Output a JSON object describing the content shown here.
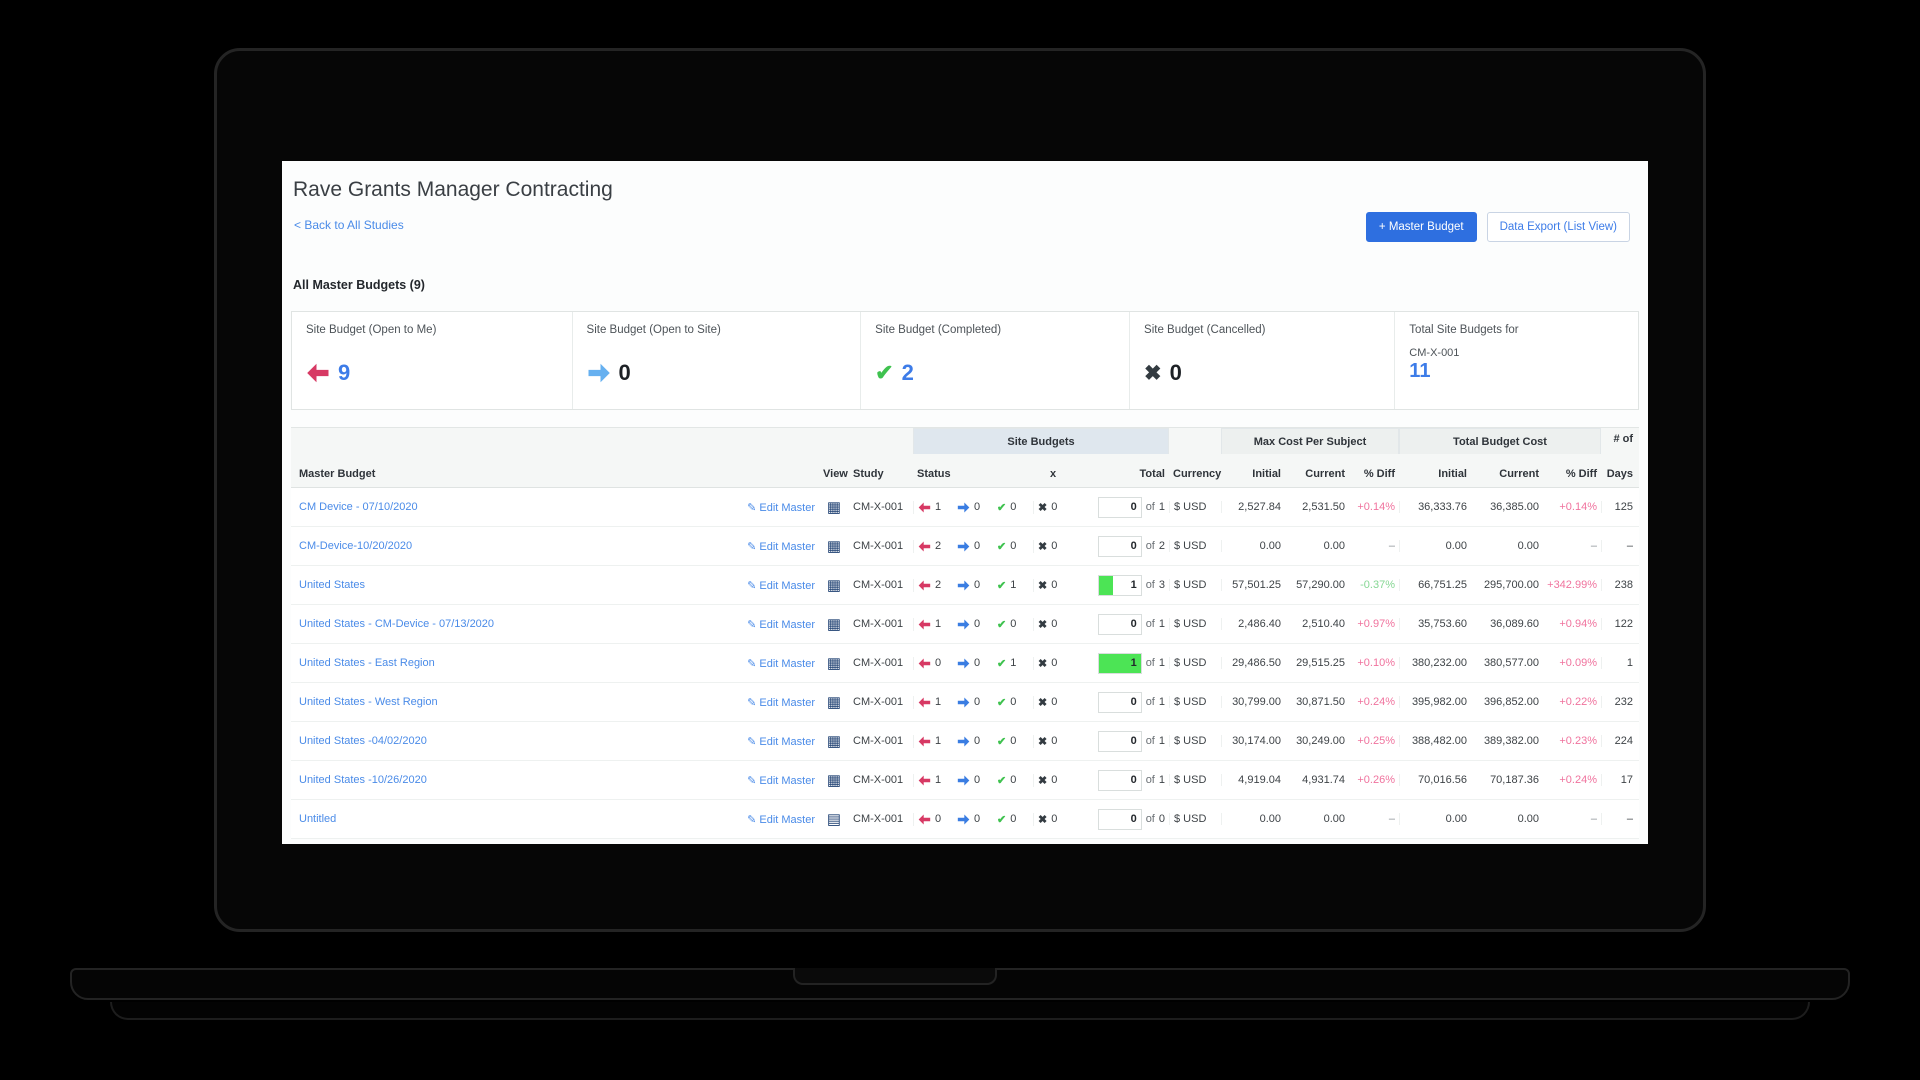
{
  "window": {
    "title": "Rave Grants Manager Contracting",
    "back_link": "< Back to All Studies"
  },
  "toolbar": {
    "master_budget_button": "+ Master Budget",
    "data_export_button": "Data Export (List View)"
  },
  "section": {
    "heading": "All Master Budgets (9)"
  },
  "summary_cards": [
    {
      "label": "Site Budget (Open to Me)",
      "icon": "left-arrow-icon",
      "value": "9",
      "value_color": "#3d7ce8"
    },
    {
      "label": "Site Budget (Open to Site)",
      "icon": "right-arrow-icon",
      "value": "0",
      "value_color": "#1d2126"
    },
    {
      "label": "Site Budget (Completed)",
      "icon": "check-icon",
      "value": "2",
      "value_color": "#3d7ce8"
    },
    {
      "label": "Site Budget (Cancelled)",
      "icon": "x-icon",
      "value": "0",
      "value_color": "#1d2126"
    },
    {
      "label": "Total Site Budgets for",
      "sublabel": "CM-X-001",
      "value": "11",
      "value_color": "#3d7ce8"
    }
  ],
  "table": {
    "headers": {
      "master_budget": "Master Budget",
      "view": "View",
      "study": "Study",
      "site_budgets": "Site Budgets",
      "status": "Status",
      "x": "x",
      "total": "Total",
      "currency": "Currency",
      "max_cost": "Max Cost Per Subject",
      "total_cost": "Total Budget Cost",
      "initial": "Initial",
      "current": "Current",
      "diff": "% Diff",
      "num_of": "# of",
      "days": "Days"
    },
    "edit_label": "Edit Master",
    "of_label": "of",
    "rows": [
      {
        "name": "CM Device - 07/10/2020",
        "study": "CM-X-001",
        "open_to_me": "1",
        "open_to_site": "0",
        "completed": "0",
        "cancelled": "0",
        "done": "0",
        "total": "1",
        "fill_pct": 0,
        "currency": "$ USD",
        "max_initial": "2,527.84",
        "max_current": "2,531.50",
        "max_diff": "+0.14%",
        "max_diff_color": "#f0739e",
        "tot_initial": "36,333.76",
        "tot_current": "36,385.00",
        "tot_diff": "+0.14%",
        "tot_diff_color": "#f0739e",
        "days": "125"
      },
      {
        "name": "CM-Device-10/20/2020",
        "study": "CM-X-001",
        "open_to_me": "2",
        "open_to_site": "0",
        "completed": "0",
        "cancelled": "0",
        "done": "0",
        "total": "2",
        "fill_pct": 0,
        "currency": "$ USD",
        "max_initial": "0.00",
        "max_current": "0.00",
        "max_diff": "–",
        "max_diff_color": "#8b9196",
        "tot_initial": "0.00",
        "tot_current": "0.00",
        "tot_diff": "–",
        "tot_diff_color": "#8b9196",
        "days": "–"
      },
      {
        "name": "United States",
        "study": "CM-X-001",
        "open_to_me": "2",
        "open_to_site": "0",
        "completed": "1",
        "cancelled": "0",
        "done": "1",
        "total": "3",
        "fill_pct": 35,
        "currency": "$ USD",
        "max_initial": "57,501.25",
        "max_current": "57,290.00",
        "max_diff": "-0.37%",
        "max_diff_color": "#86d794",
        "tot_initial": "66,751.25",
        "tot_current": "295,700.00",
        "tot_diff": "+342.99%",
        "tot_diff_color": "#f0739e",
        "days": "238"
      },
      {
        "name": "United States - CM-Device - 07/13/2020",
        "study": "CM-X-001",
        "open_to_me": "1",
        "open_to_site": "0",
        "completed": "0",
        "cancelled": "0",
        "done": "0",
        "total": "1",
        "fill_pct": 0,
        "currency": "$ USD",
        "max_initial": "2,486.40",
        "max_current": "2,510.40",
        "max_diff": "+0.97%",
        "max_diff_color": "#f0739e",
        "tot_initial": "35,753.60",
        "tot_current": "36,089.60",
        "tot_diff": "+0.94%",
        "tot_diff_color": "#f0739e",
        "days": "122"
      },
      {
        "name": "United States - East Region",
        "study": "CM-X-001",
        "open_to_me": "0",
        "open_to_site": "0",
        "completed": "1",
        "cancelled": "0",
        "done": "1",
        "total": "1",
        "fill_pct": 100,
        "currency": "$ USD",
        "max_initial": "29,486.50",
        "max_current": "29,515.25",
        "max_diff": "+0.10%",
        "max_diff_color": "#f0739e",
        "tot_initial": "380,232.00",
        "tot_current": "380,577.00",
        "tot_diff": "+0.09%",
        "tot_diff_color": "#f0739e",
        "days": "1"
      },
      {
        "name": "United States - West Region",
        "study": "CM-X-001",
        "open_to_me": "1",
        "open_to_site": "0",
        "completed": "0",
        "cancelled": "0",
        "done": "0",
        "total": "1",
        "fill_pct": 0,
        "currency": "$ USD",
        "max_initial": "30,799.00",
        "max_current": "30,871.50",
        "max_diff": "+0.24%",
        "max_diff_color": "#f0739e",
        "tot_initial": "395,982.00",
        "tot_current": "396,852.00",
        "tot_diff": "+0.22%",
        "tot_diff_color": "#f0739e",
        "days": "232"
      },
      {
        "name": "United States -04/02/2020",
        "study": "CM-X-001",
        "open_to_me": "1",
        "open_to_site": "0",
        "completed": "0",
        "cancelled": "0",
        "done": "0",
        "total": "1",
        "fill_pct": 0,
        "currency": "$ USD",
        "max_initial": "30,174.00",
        "max_current": "30,249.00",
        "max_diff": "+0.25%",
        "max_diff_color": "#f0739e",
        "tot_initial": "388,482.00",
        "tot_current": "389,382.00",
        "tot_diff": "+0.23%",
        "tot_diff_color": "#f0739e",
        "days": "224"
      },
      {
        "name": "United States -10/26/2020",
        "study": "CM-X-001",
        "open_to_me": "1",
        "open_to_site": "0",
        "completed": "0",
        "cancelled": "0",
        "done": "0",
        "total": "1",
        "fill_pct": 0,
        "currency": "$ USD",
        "max_initial": "4,919.04",
        "max_current": "4,931.74",
        "max_diff": "+0.26%",
        "max_diff_color": "#f0739e",
        "tot_initial": "70,016.56",
        "tot_current": "70,187.36",
        "tot_diff": "+0.24%",
        "tot_diff_color": "#f0739e",
        "days": "17"
      },
      {
        "name": "Untitled",
        "study": "CM-X-001",
        "open_to_me": "0",
        "open_to_site": "0",
        "completed": "0",
        "cancelled": "0",
        "done": "0",
        "total": "0",
        "fill_pct": 0,
        "currency": "$ USD",
        "max_initial": "0.00",
        "max_current": "0.00",
        "max_diff": "–",
        "max_diff_color": "#8b9196",
        "tot_initial": "0.00",
        "tot_current": "0.00",
        "tot_diff": "–",
        "tot_diff_color": "#8b9196",
        "days": "–"
      }
    ]
  },
  "colors": {
    "accent_blue": "#3d7ce8",
    "link_blue": "#4a8be8",
    "button_blue": "#2e6fe0",
    "arrow_red": "#d73964",
    "arrow_blue": "#3a7de2",
    "check_green": "#3fc24f",
    "cancel_dark": "#333b41",
    "diff_pink": "#f0739e",
    "diff_green": "#86d794",
    "progress_green": "#4ce455"
  }
}
